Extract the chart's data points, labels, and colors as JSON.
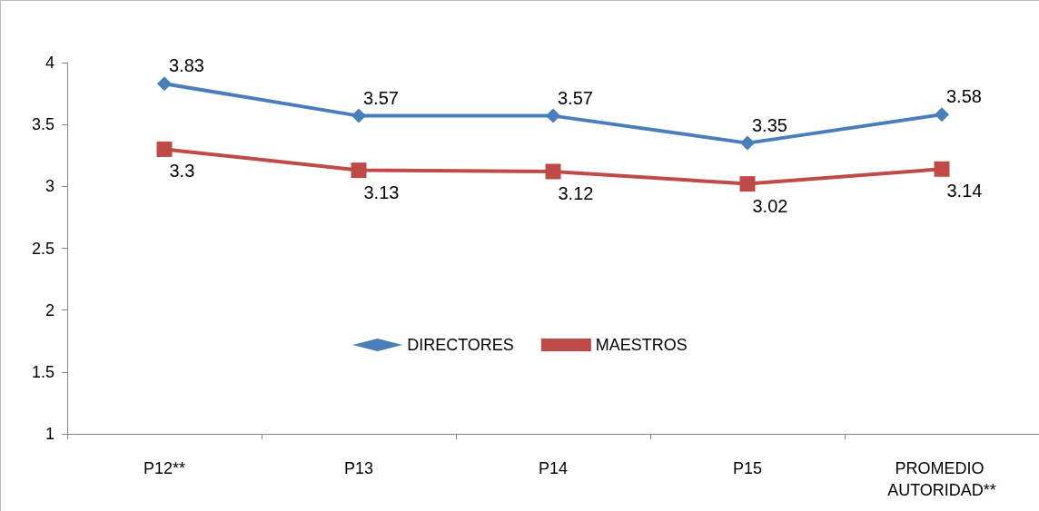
{
  "chart_data": {
    "type": "line",
    "categories": [
      "P12**",
      "P13",
      "P14",
      "P15",
      "PROMEDIO AUTORIDAD**"
    ],
    "series": [
      {
        "name": "DIRECTORES",
        "color": "#4a7ebb",
        "marker": "diamond",
        "values": [
          3.83,
          3.57,
          3.57,
          3.35,
          3.58
        ]
      },
      {
        "name": "MAESTROS",
        "color": "#be4b48",
        "marker": "square",
        "values": [
          3.3,
          3.13,
          3.12,
          3.02,
          3.14
        ]
      }
    ],
    "ylim": [
      1,
      4
    ],
    "yticks": [
      1,
      1.5,
      2,
      2.5,
      3,
      3.5,
      4
    ],
    "grid": false,
    "legend": "center",
    "data_labels": true
  }
}
